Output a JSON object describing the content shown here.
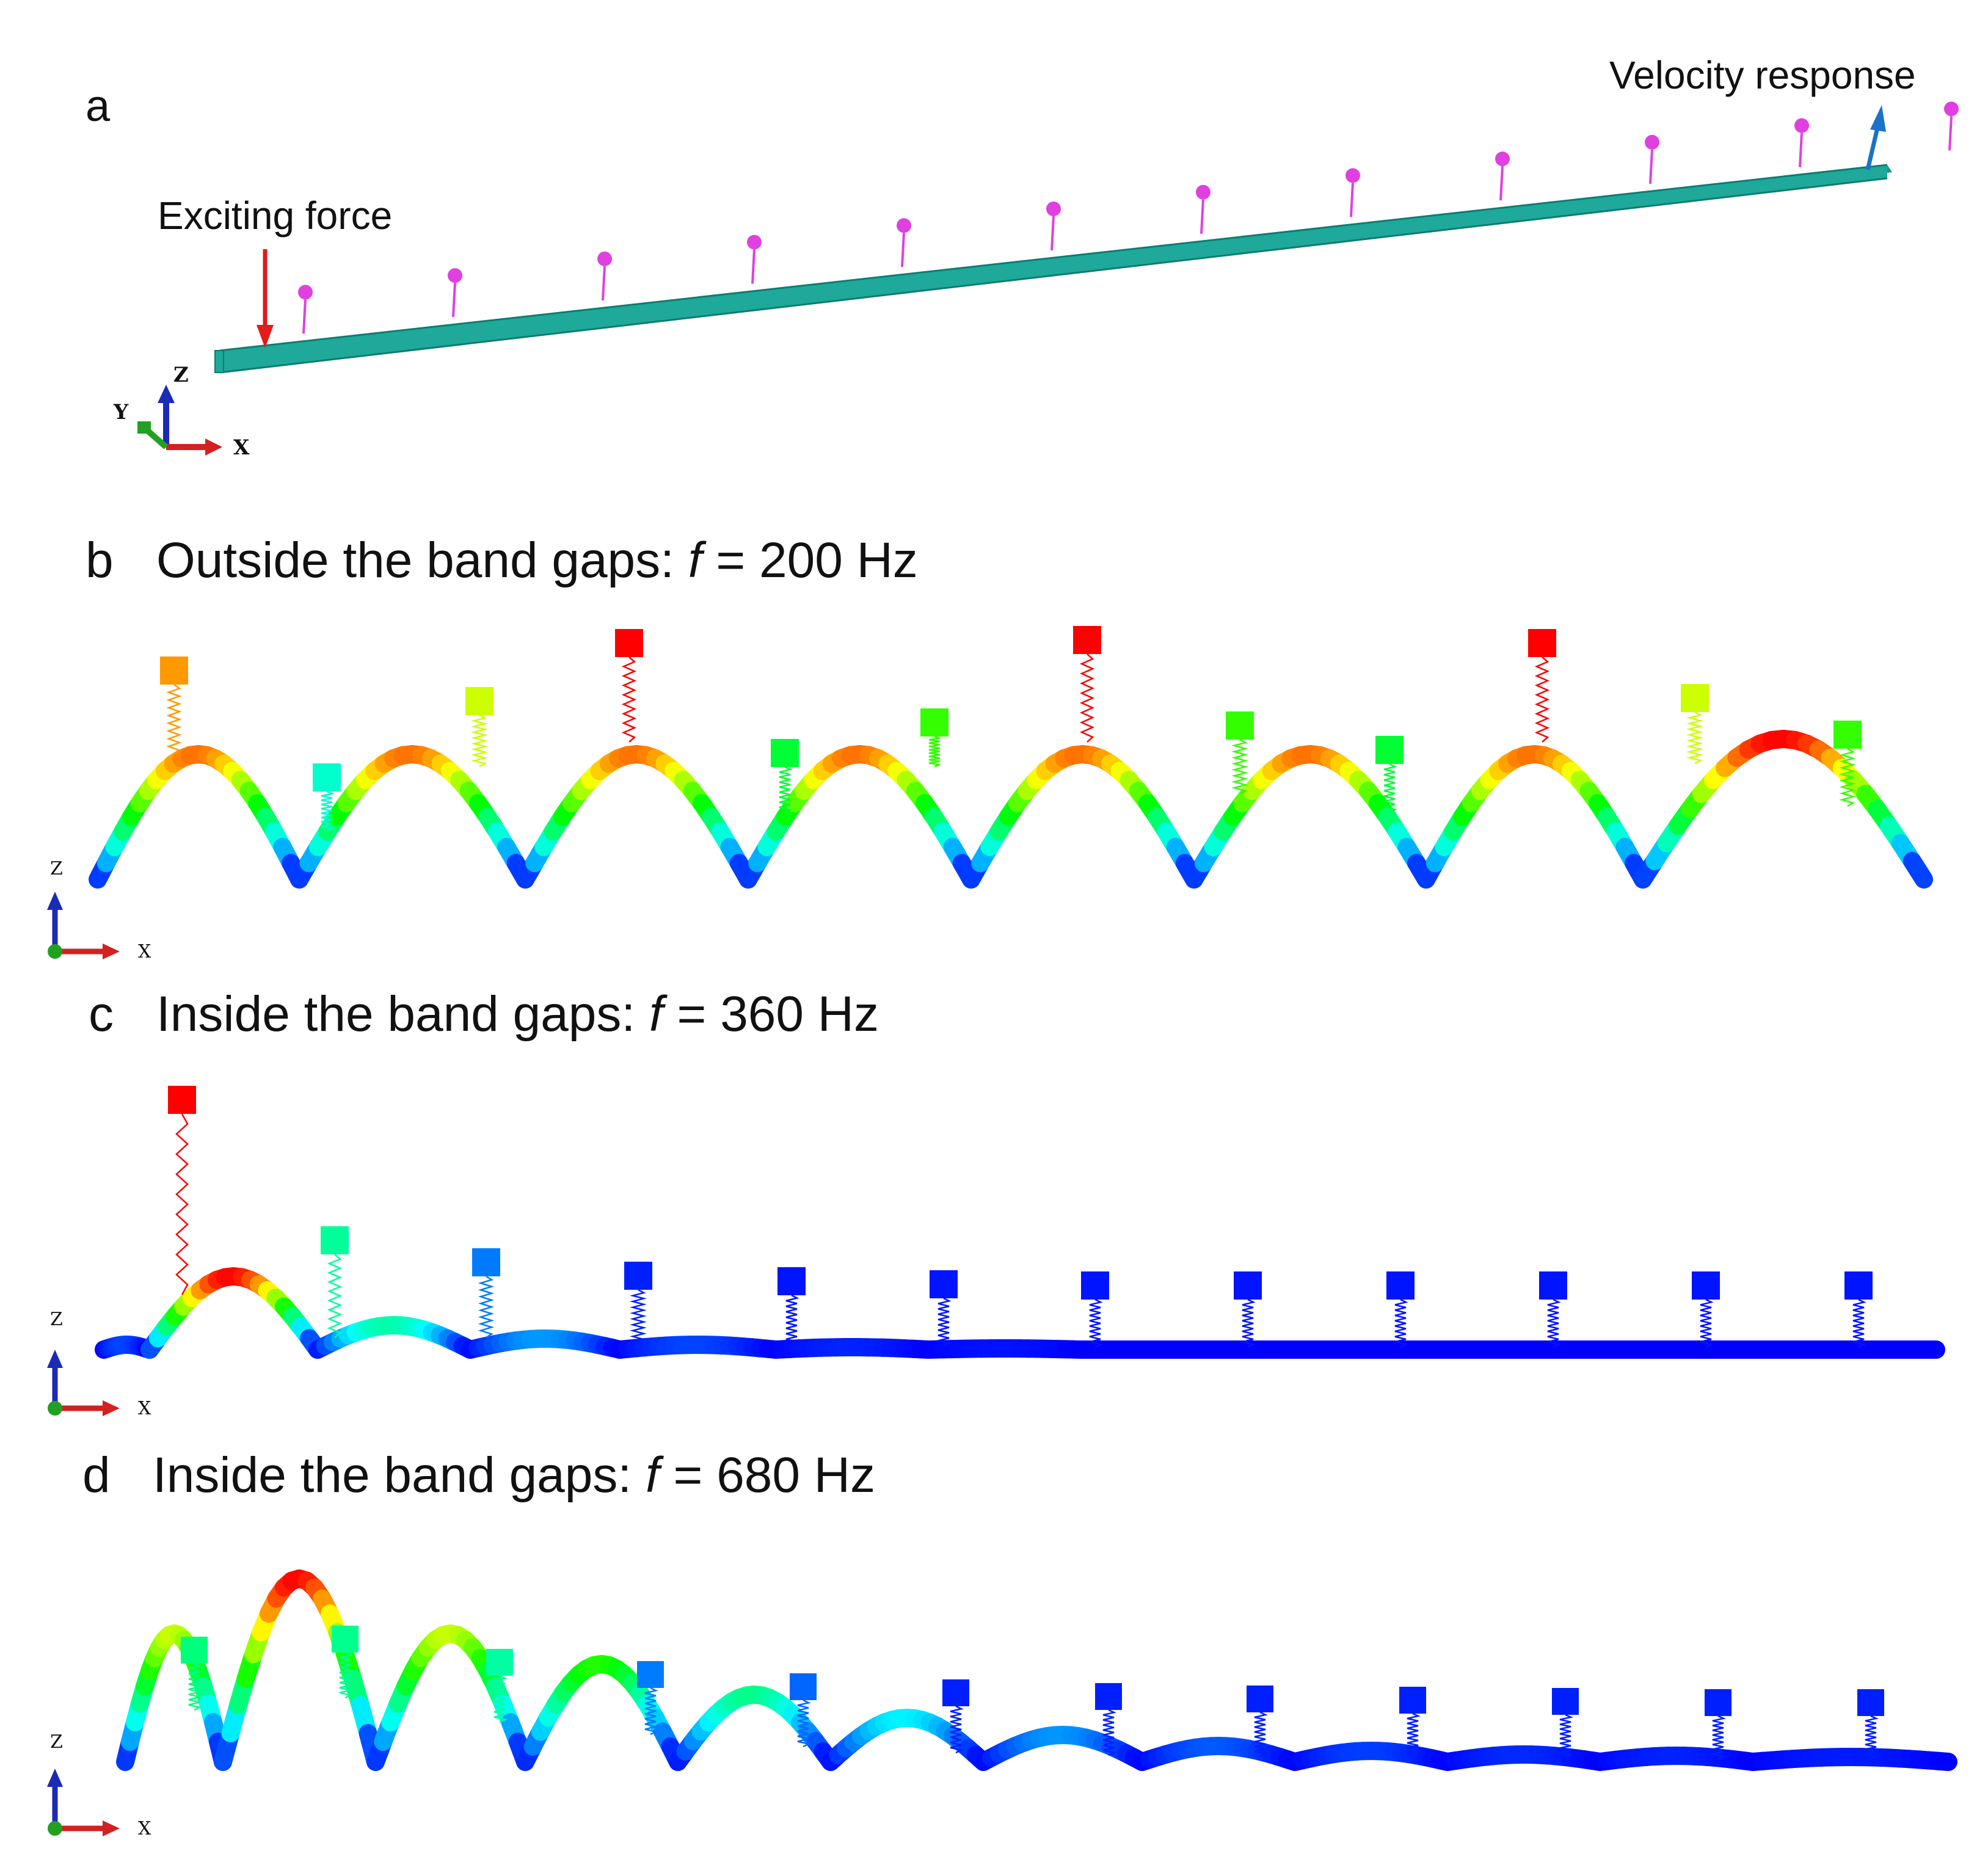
{
  "colors": {
    "beam_a": "#1ea99a",
    "beam_edge": "#0e7c70",
    "resonator_a": "#e040e0",
    "exciting_force_arrow": "#e21b1b",
    "velocity_arrow": "#1a73c8",
    "axis_x": "#d42020",
    "axis_y": "#22a022",
    "axis_z": "#1c2ab8",
    "scale": [
      "#0000ff",
      "#0080ff",
      "#00ffff",
      "#00ff80",
      "#00ff00",
      "#80ff00",
      "#ffff00",
      "#ff8000",
      "#ff0000"
    ]
  },
  "icons": {
    "force_arrow": "arrow-down-icon",
    "velocity_arrow": "arrow-up-icon"
  },
  "panel_a": {
    "letter": "a",
    "exciting_force_label": "Exciting force",
    "velocity_response_label": "Velocity response",
    "axis": {
      "x": "X",
      "y": "Y",
      "z": "Z"
    },
    "resonator_count": 12
  },
  "panel_b": {
    "letter": "b",
    "title_prefix": "Outside the band gaps: ",
    "var": "f",
    "title_suffix": " = 200 Hz",
    "axis": {
      "x": "X",
      "z": "Z"
    },
    "resonator_levels": [
      0.85,
      0.3,
      0.7,
      1.0,
      0.45,
      0.55,
      1.0,
      0.55,
      0.45,
      1.0,
      0.7,
      0.55
    ]
  },
  "panel_c": {
    "letter": "c",
    "title_prefix": "Inside the band gaps: ",
    "var": "f",
    "title_suffix": " = 360 Hz",
    "axis": {
      "x": "X",
      "z": "Z"
    },
    "resonator_levels": [
      1.0,
      0.35,
      0.12,
      0.03,
      0.02,
      0.02,
      0.02,
      0.02,
      0.02,
      0.02,
      0.02,
      0.02
    ]
  },
  "panel_d": {
    "letter": "d",
    "title_prefix": "Inside the band gaps: ",
    "var": "f",
    "title_suffix": " = 680 Hz",
    "axis": {
      "x": "X",
      "z": "Z"
    },
    "resonator_levels": [
      0.38,
      0.36,
      0.34,
      0.12,
      0.1,
      0.03,
      0.03,
      0.03,
      0.03,
      0.03,
      0.03,
      0.03
    ]
  }
}
